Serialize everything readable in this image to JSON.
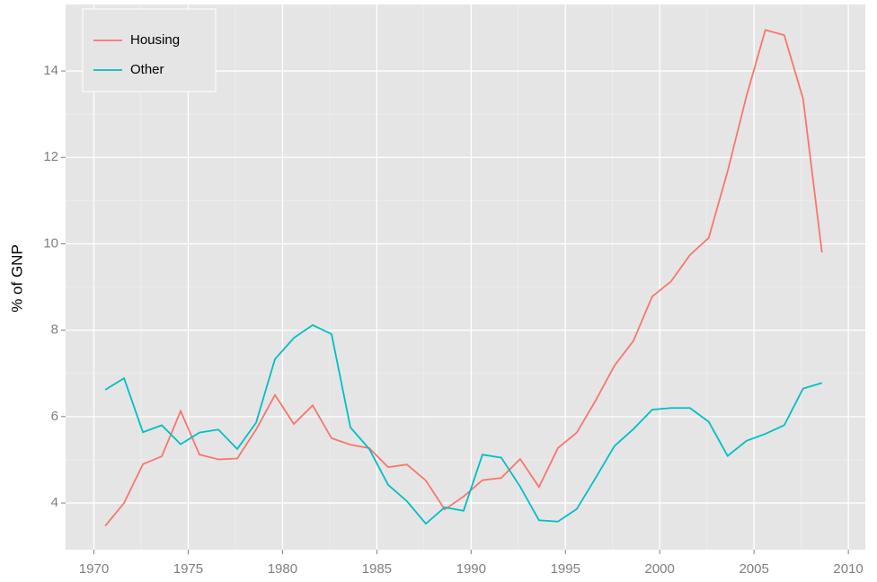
{
  "chart_data": {
    "type": "line",
    "y_label": "% of GNP",
    "x": [
      1970.6,
      1971.6,
      1972.6,
      1973.6,
      1974.6,
      1975.6,
      1976.6,
      1977.6,
      1978.6,
      1979.6,
      1980.6,
      1981.6,
      1982.6,
      1983.6,
      1984.6,
      1985.6,
      1986.6,
      1987.6,
      1988.6,
      1989.6,
      1990.6,
      1991.6,
      1992.6,
      1993.6,
      1994.6,
      1995.6,
      1996.6,
      1997.6,
      1998.6,
      1999.6,
      2000.6,
      2001.6,
      2002.6,
      2003.6,
      2004.6,
      2005.6,
      2006.6,
      2007.6,
      2008.6
    ],
    "series": [
      {
        "name": "Housing",
        "color": "#F8766D",
        "values": [
          3.47,
          4.0,
          4.9,
          5.08,
          6.13,
          5.12,
          5.01,
          5.03,
          5.7,
          6.5,
          5.83,
          6.26,
          5.5,
          5.35,
          5.27,
          4.83,
          4.89,
          4.52,
          3.85,
          4.15,
          4.53,
          4.58,
          5.02,
          4.37,
          5.27,
          5.63,
          6.37,
          7.18,
          7.75,
          8.78,
          9.13,
          9.74,
          10.14,
          11.68,
          13.42,
          14.95,
          14.83,
          13.36,
          9.8
        ]
      },
      {
        "name": "Other",
        "color": "#00BFC4",
        "values": [
          6.62,
          6.89,
          5.64,
          5.8,
          5.36,
          5.63,
          5.7,
          5.25,
          5.86,
          7.33,
          7.82,
          8.12,
          7.91,
          5.75,
          5.25,
          4.42,
          4.04,
          3.52,
          3.9,
          3.82,
          5.12,
          5.05,
          4.38,
          3.6,
          3.57,
          3.86,
          4.58,
          5.32,
          5.71,
          6.16,
          6.2,
          6.2,
          5.88,
          5.09,
          5.44,
          5.6,
          5.8,
          6.65,
          6.78
        ]
      }
    ],
    "xlim": [
      1968.5,
      2010.9
    ],
    "xticks": [
      1970,
      1975,
      1980,
      1985,
      1990,
      1995,
      2000,
      2005,
      2010
    ],
    "ylim": [
      2.92,
      15.54
    ],
    "yticks": [
      4,
      6,
      8,
      10,
      12,
      14
    ],
    "grid": true,
    "legend_position": "top-left"
  }
}
